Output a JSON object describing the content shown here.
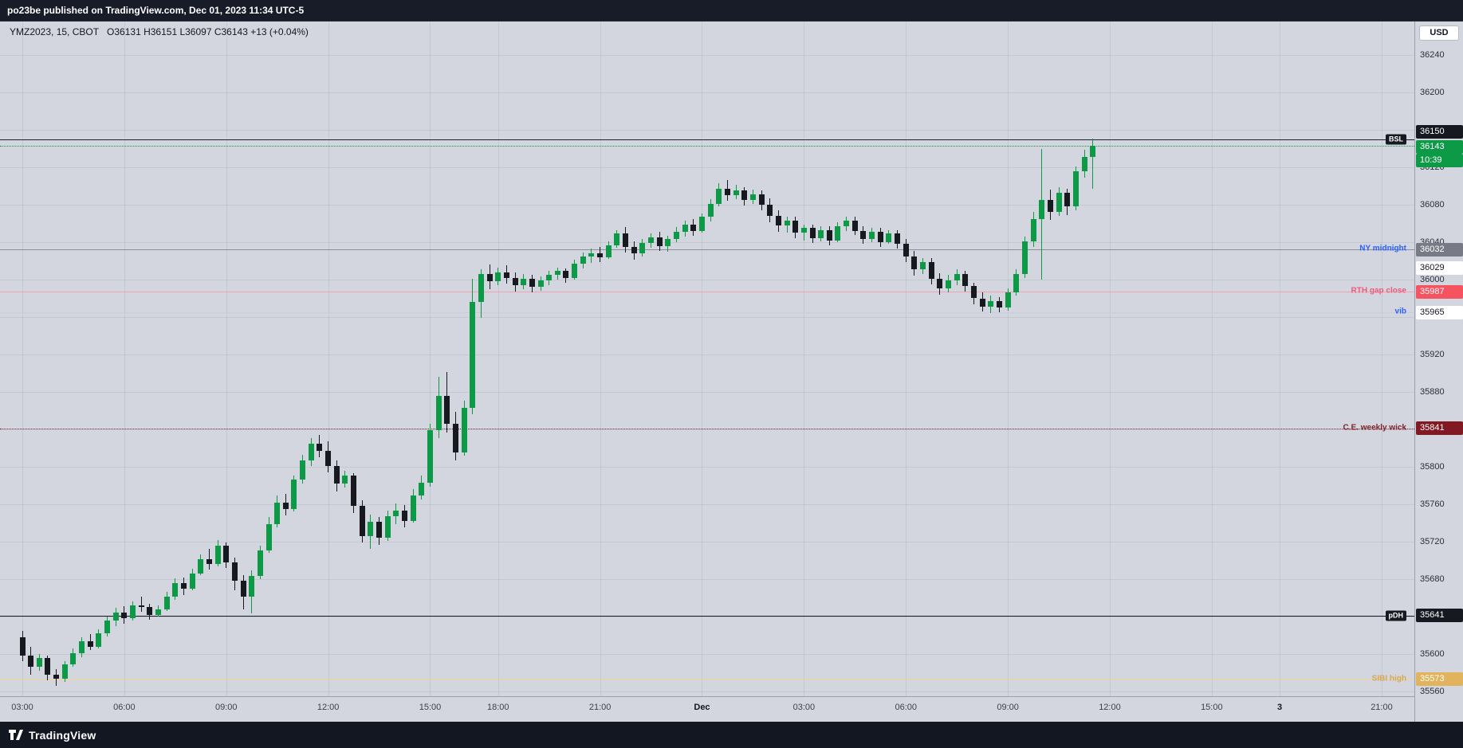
{
  "top_bar": {
    "text": "po23be published on TradingView.com, Dec 01, 2023 11:34 UTC-5"
  },
  "legend": {
    "symbol": "YMZ2023, 15, CBOT",
    "ohlc": "O36131  H36151  L36097  C36143  +13 (+0.04%)"
  },
  "price_axis": {
    "currency": "USD"
  },
  "bottom_bar": {
    "brand": "TradingView"
  },
  "chart_data": {
    "type": "candlestick",
    "title": "YMZ2023, 15, CBOT",
    "symbol": "YMZ2023",
    "interval": "15",
    "exchange": "CBOT",
    "ohlc_legend": {
      "open": 36131,
      "high": 36151,
      "low": 36097,
      "close": 36143,
      "change": "+13",
      "change_pct": "+0.04%"
    },
    "ylim": [
      35560,
      36240
    ],
    "y_tick_step": 40,
    "grid": true,
    "colors": {
      "background": "#d3d6de",
      "up": "#0c9a47",
      "down": "#17191e",
      "axis_text": "#2a2e39"
    },
    "price_ticks_visible": [
      36240,
      36200,
      36120,
      36080,
      36040,
      36000,
      35920,
      35880,
      35800,
      35760,
      35720,
      35680,
      35600,
      35560
    ],
    "x_axis_labels": [
      {
        "bar": 0,
        "text": "03:00"
      },
      {
        "bar": 12,
        "text": "06:00"
      },
      {
        "bar": 24,
        "text": "09:00"
      },
      {
        "bar": 36,
        "text": "12:00"
      },
      {
        "bar": 48,
        "text": "15:00"
      },
      {
        "bar": 56,
        "text": "18:00"
      },
      {
        "bar": 68,
        "text": "21:00"
      },
      {
        "bar": 80,
        "text": "Dec",
        "day_marker": true
      },
      {
        "bar": 92,
        "text": "03:00"
      },
      {
        "bar": 104,
        "text": "06:00"
      },
      {
        "bar": 116,
        "text": "09:00"
      },
      {
        "bar": 128,
        "text": "12:00"
      },
      {
        "bar": 140,
        "text": "15:00"
      },
      {
        "bar": 148,
        "text": "3",
        "day_marker": true
      },
      {
        "bar": 160,
        "text": "21:00"
      }
    ],
    "levels": [
      {
        "name": "bsl",
        "price": 36150,
        "label": "BSL",
        "style": "solid",
        "line_color": "#1c212e",
        "label_mode": "chip",
        "chip_bg": "#16191f",
        "chip_fg": "#ffffff",
        "badge": "36150",
        "badge_bg": "#16191f",
        "badge_fg": "#ffffff"
      },
      {
        "name": "ny-midnight",
        "price": 36032,
        "label": "NY midnight",
        "style": "solid",
        "line_color": "#8b8f9b",
        "label_mode": "text",
        "label_color": "#2962ff",
        "badge": "36032",
        "badge_bg": "#787b86",
        "badge_fg": "#ffffff"
      },
      {
        "name": "level-36029",
        "price": 36029,
        "label": "",
        "style": "none",
        "badge": "36029",
        "badge_bg": "#ffffff",
        "badge_fg": "#131722"
      },
      {
        "name": "rth-gap-close",
        "price": 35987,
        "label": "RTH gap close",
        "style": "solid",
        "line_color": "#f2a1b5",
        "label_mode": "text",
        "label_color": "#ef5b77",
        "badge": "35987",
        "badge_bg": "#f7525f",
        "badge_fg": "#ffffff"
      },
      {
        "name": "vib",
        "price": 35965,
        "label": "vib",
        "style": "solid",
        "line_color": "#c6cddf",
        "label_mode": "text",
        "label_color": "#2962ff",
        "badge": "35965",
        "badge_bg": "#ffffff",
        "badge_fg": "#131722"
      },
      {
        "name": "ce-weekly-wick",
        "price": 35841,
        "label": "C.E. weekly wick",
        "style": "dotted",
        "line_color": "#80242c",
        "label_mode": "text",
        "label_color": "#80242c",
        "badge": "35841",
        "badge_bg": "#801922",
        "badge_fg": "#ffffff"
      },
      {
        "name": "pdh",
        "price": 35641,
        "label": "pDH",
        "style": "solid",
        "line_color": "#16191f",
        "label_mode": "chip",
        "chip_bg": "#16191f",
        "chip_fg": "#ffffff",
        "badge": "35641",
        "badge_bg": "#16191f",
        "badge_fg": "#ffffff"
      },
      {
        "name": "sibi-high",
        "price": 35573,
        "label": "SIBI high",
        "style": "solid",
        "line_color": "#f3d48a",
        "label_mode": "text",
        "label_color": "#d7a94f",
        "badge": "35573",
        "badge_bg": "#e0b35c",
        "badge_fg": "#ffffff"
      }
    ],
    "current_price": {
      "price": 36143,
      "badge": "36143",
      "countdown": "10:39",
      "color": "#0c9a47"
    },
    "candles": [
      [
        35618,
        35625,
        35592,
        35598
      ],
      [
        35598,
        35608,
        35578,
        35586
      ],
      [
        35586,
        35600,
        35582,
        35596
      ],
      [
        35596,
        35598,
        35572,
        35578
      ],
      [
        35578,
        35584,
        35566,
        35574
      ],
      [
        35574,
        35592,
        35570,
        35589
      ],
      [
        35589,
        35606,
        35586,
        35601
      ],
      [
        35601,
        35618,
        35597,
        35614
      ],
      [
        35614,
        35621,
        35604,
        35608
      ],
      [
        35608,
        35626,
        35606,
        35622
      ],
      [
        35622,
        35640,
        35619,
        35636
      ],
      [
        35636,
        35649,
        35630,
        35644
      ],
      [
        35644,
        35651,
        35632,
        35638
      ],
      [
        35638,
        35656,
        35636,
        35652
      ],
      [
        35652,
        35661,
        35645,
        35650
      ],
      [
        35650,
        35654,
        35637,
        35642
      ],
      [
        35642,
        35652,
        35640,
        35648
      ],
      [
        35648,
        35666,
        35646,
        35661
      ],
      [
        35661,
        35681,
        35658,
        35676
      ],
      [
        35676,
        35682,
        35663,
        35670
      ],
      [
        35670,
        35691,
        35668,
        35686
      ],
      [
        35686,
        35706,
        35684,
        35701
      ],
      [
        35701,
        35712,
        35690,
        35696
      ],
      [
        35696,
        35722,
        35694,
        35716
      ],
      [
        35716,
        35719,
        35692,
        35698
      ],
      [
        35698,
        35703,
        35668,
        35678
      ],
      [
        35678,
        35684,
        35648,
        35661
      ],
      [
        35661,
        35689,
        35643,
        35683
      ],
      [
        35683,
        35716,
        35680,
        35711
      ],
      [
        35711,
        35746,
        35708,
        35739
      ],
      [
        35739,
        35769,
        35735,
        35762
      ],
      [
        35762,
        35771,
        35748,
        35755
      ],
      [
        35755,
        35791,
        35752,
        35786
      ],
      [
        35786,
        35813,
        35782,
        35807
      ],
      [
        35807,
        35831,
        35801,
        35825
      ],
      [
        35825,
        35834,
        35810,
        35817
      ],
      [
        35817,
        35827,
        35794,
        35801
      ],
      [
        35801,
        35807,
        35774,
        35782
      ],
      [
        35782,
        35796,
        35778,
        35791
      ],
      [
        35791,
        35793,
        35751,
        35758
      ],
      [
        35758,
        35764,
        35719,
        35726
      ],
      [
        35726,
        35749,
        35712,
        35741
      ],
      [
        35741,
        35746,
        35717,
        35724
      ],
      [
        35724,
        35753,
        35721,
        35747
      ],
      [
        35747,
        35761,
        35739,
        35753
      ],
      [
        35753,
        35759,
        35735,
        35742
      ],
      [
        35742,
        35776,
        35740,
        35769
      ],
      [
        35769,
        35791,
        35765,
        35783
      ],
      [
        35783,
        35846,
        35779,
        35839
      ],
      [
        35839,
        35896,
        35831,
        35876
      ],
      [
        35876,
        35901,
        35837,
        35846
      ],
      [
        35846,
        35859,
        35807,
        35815
      ],
      [
        35815,
        35871,
        35812,
        35863
      ],
      [
        35863,
        36001,
        35856,
        35976
      ],
      [
        35976,
        36011,
        35959,
        36006
      ],
      [
        36006,
        36016,
        35990,
        35998
      ],
      [
        35998,
        36013,
        35994,
        36008
      ],
      [
        36008,
        36015,
        35996,
        36002
      ],
      [
        36002,
        36008,
        35987,
        35994
      ],
      [
        35994,
        36006,
        35990,
        36001
      ],
      [
        36001,
        36005,
        35986,
        35992
      ],
      [
        35992,
        36003,
        35988,
        35999
      ],
      [
        35999,
        36009,
        35994,
        36005
      ],
      [
        36005,
        36013,
        36000,
        36009
      ],
      [
        36009,
        36012,
        35997,
        36002
      ],
      [
        36002,
        36021,
        36000,
        36017
      ],
      [
        36017,
        36029,
        36012,
        36025
      ],
      [
        36025,
        36033,
        36018,
        36028
      ],
      [
        36028,
        36035,
        36019,
        36024
      ],
      [
        36024,
        36041,
        36022,
        36037
      ],
      [
        36037,
        36053,
        36034,
        36049
      ],
      [
        36049,
        36056,
        36029,
        36035
      ],
      [
        36035,
        36041,
        36021,
        36028
      ],
      [
        36028,
        36043,
        36025,
        36039
      ],
      [
        36039,
        36049,
        36034,
        36045
      ],
      [
        36045,
        36051,
        36031,
        36036
      ],
      [
        36036,
        36047,
        36030,
        36043
      ],
      [
        36043,
        36056,
        36040,
        36051
      ],
      [
        36051,
        36063,
        36046,
        36059
      ],
      [
        36059,
        36065,
        36047,
        36052
      ],
      [
        36052,
        36071,
        36050,
        36067
      ],
      [
        36067,
        36086,
        36062,
        36081
      ],
      [
        36081,
        36103,
        36078,
        36097
      ],
      [
        36097,
        36106,
        36084,
        36090
      ],
      [
        36090,
        36101,
        36086,
        36095
      ],
      [
        36095,
        36099,
        36079,
        36085
      ],
      [
        36085,
        36096,
        36081,
        36091
      ],
      [
        36091,
        36095,
        36074,
        36080
      ],
      [
        36080,
        36087,
        36061,
        36068
      ],
      [
        36068,
        36074,
        36051,
        36058
      ],
      [
        36058,
        36067,
        36050,
        36063
      ],
      [
        36063,
        36067,
        36044,
        36050
      ],
      [
        36050,
        36059,
        36042,
        36055
      ],
      [
        36055,
        36059,
        36039,
        36044
      ],
      [
        36044,
        36057,
        36041,
        36053
      ],
      [
        36053,
        36057,
        36037,
        36042
      ],
      [
        36042,
        36061,
        36040,
        36057
      ],
      [
        36057,
        36067,
        36052,
        36063
      ],
      [
        36063,
        36067,
        36048,
        36052
      ],
      [
        36052,
        36057,
        36038,
        36043
      ],
      [
        36043,
        36055,
        36040,
        36051
      ],
      [
        36051,
        36055,
        36035,
        36040
      ],
      [
        36040,
        36053,
        36038,
        36049
      ],
      [
        36049,
        36053,
        36033,
        36038
      ],
      [
        36038,
        36043,
        36019,
        36025
      ],
      [
        36025,
        36031,
        36004,
        36011
      ],
      [
        36011,
        36023,
        36006,
        36019
      ],
      [
        36019,
        36023,
        35995,
        36001
      ],
      [
        36001,
        36007,
        35984,
        35991
      ],
      [
        35991,
        36005,
        35986,
        35999
      ],
      [
        35999,
        36011,
        35994,
        36006
      ],
      [
        36006,
        36009,
        35987,
        35993
      ],
      [
        35993,
        35997,
        35974,
        35980
      ],
      [
        35980,
        35986,
        35966,
        35971
      ],
      [
        35971,
        35983,
        35964,
        35977
      ],
      [
        35977,
        35981,
        35965,
        35970
      ],
      [
        35970,
        35991,
        35967,
        35986
      ],
      [
        35986,
        36011,
        35983,
        36006
      ],
      [
        36006,
        36046,
        36002,
        36041
      ],
      [
        36041,
        36072,
        36035,
        36065
      ],
      [
        36065,
        36140,
        36000,
        36085
      ],
      [
        36085,
        36096,
        36064,
        36072
      ],
      [
        36072,
        36099,
        36068,
        36093
      ],
      [
        36093,
        36097,
        36069,
        36078
      ],
      [
        36078,
        36121,
        36074,
        36116
      ],
      [
        36116,
        36139,
        36109,
        36131
      ],
      [
        36131,
        36151,
        36097,
        36143
      ]
    ]
  }
}
